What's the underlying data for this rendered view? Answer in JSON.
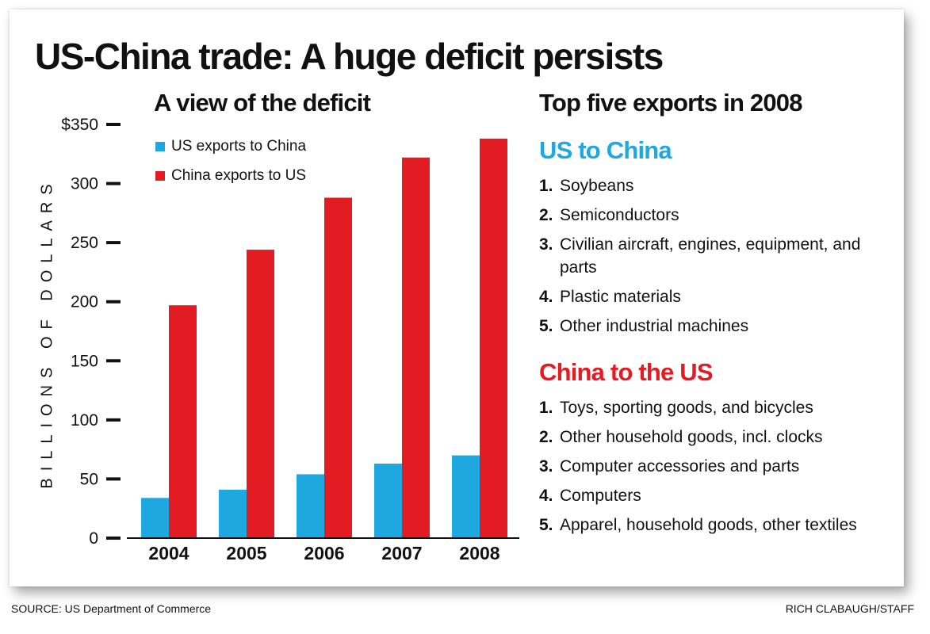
{
  "title": "US-China trade: A huge deficit persists",
  "chart_data": {
    "type": "bar",
    "title": "A view of the deficit",
    "xlabel": "",
    "ylabel": "BILLIONS OF DOLLARS",
    "categories": [
      "2004",
      "2005",
      "2006",
      "2007",
      "2008"
    ],
    "series": [
      {
        "name": "US exports to China",
        "color": "#1fa7df",
        "values": [
          34,
          41,
          54,
          63,
          70
        ]
      },
      {
        "name": "China exports to US",
        "color": "#e31b23",
        "values": [
          197,
          244,
          288,
          322,
          338
        ]
      }
    ],
    "ylim": [
      0,
      350
    ],
    "yticks": [
      0,
      50,
      100,
      150,
      200,
      250,
      300,
      350
    ],
    "ytick_labels": [
      "0",
      "50",
      "100",
      "150",
      "200",
      "250",
      "300",
      "$350"
    ],
    "grid": false,
    "legend_position": "top-left"
  },
  "top_exports": {
    "title": "Top five exports in 2008",
    "sections": [
      {
        "heading": "US to China",
        "color": "#1fa7df",
        "items": [
          {
            "num": "1.",
            "text": "Soybeans"
          },
          {
            "num": "2.",
            "text": "Semiconductors"
          },
          {
            "num": "3.",
            "text": "Civilian aircraft, engines, equipment, and parts"
          },
          {
            "num": "4.",
            "text": "Plastic materials"
          },
          {
            "num": "5.",
            "text": "Other industrial machines"
          }
        ]
      },
      {
        "heading": "China to the US",
        "color": "#e31b23",
        "items": [
          {
            "num": "1.",
            "text": "Toys, sporting goods, and bicycles"
          },
          {
            "num": "2.",
            "text": "Other household goods, incl. clocks"
          },
          {
            "num": "3.",
            "text": "Computer accessories and parts"
          },
          {
            "num": "4.",
            "text": "Computers"
          },
          {
            "num": "5.",
            "text": "Apparel, household goods, other textiles"
          }
        ]
      }
    ]
  },
  "footer": {
    "source": "SOURCE: US Department of Commerce",
    "credit": "RICH CLABAUGH/STAFF"
  }
}
